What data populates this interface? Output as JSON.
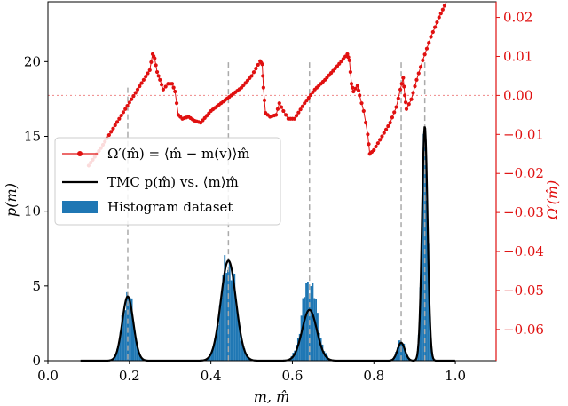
{
  "colors": {
    "histogram": "#1f77b4",
    "tmc_line": "#000000",
    "omega": "#e01010",
    "right_axis": "#e01010",
    "guide": "#aaaaaa",
    "frame": "#000000"
  },
  "chart_data": {
    "type": "bar",
    "title": "",
    "xlabel": "m, m̂",
    "ylabel": "p(m)",
    "y2label": "Ω′(m̂)",
    "xlim": [
      0.0,
      1.1
    ],
    "ylim": [
      0,
      24
    ],
    "y2lim": [
      -0.068,
      0.024
    ],
    "x_ticks": [
      {
        "v": 0.0,
        "label": "0.0"
      },
      {
        "v": 0.2,
        "label": "0.2"
      },
      {
        "v": 0.4,
        "label": "0.4"
      },
      {
        "v": 0.6,
        "label": "0.6"
      },
      {
        "v": 0.8,
        "label": "0.8"
      },
      {
        "v": 1.0,
        "label": "1.0"
      }
    ],
    "y_ticks": [
      {
        "v": 0,
        "label": "0"
      },
      {
        "v": 5,
        "label": "5"
      },
      {
        "v": 10,
        "label": "10"
      },
      {
        "v": 15,
        "label": "15"
      },
      {
        "v": 20,
        "label": "20"
      }
    ],
    "y2_ticks": [
      {
        "v": 0.02,
        "label": "0.02"
      },
      {
        "v": 0.01,
        "label": "0.01"
      },
      {
        "v": 0.0,
        "label": "0.00"
      },
      {
        "v": -0.01,
        "label": "−0.01"
      },
      {
        "v": -0.02,
        "label": "−0.02"
      },
      {
        "v": -0.03,
        "label": "−0.03"
      },
      {
        "v": -0.04,
        "label": "−0.04"
      },
      {
        "v": -0.05,
        "label": "−0.05"
      },
      {
        "v": -0.06,
        "label": "−0.06"
      }
    ],
    "legend_position": "center-left",
    "legend": [
      {
        "kind": "line-marker",
        "label": "Ω′(m̂) = ⟨m̂ − m(v)⟩m̂"
      },
      {
        "kind": "line",
        "label": "TMC p(m̂) vs. ⟨m⟩m̂"
      },
      {
        "kind": "patch",
        "label": "Histogram dataset"
      }
    ],
    "zero_reference_line": 0.0,
    "guide_lines_x": [
      0.196,
      0.443,
      0.642,
      0.867,
      0.925
    ],
    "peaks": [
      {
        "mu": 0.196,
        "sigma": 0.0135,
        "tmc_peak": 4.3,
        "hist_peak": 4.9
      },
      {
        "mu": 0.443,
        "sigma": 0.0185,
        "tmc_peak": 6.7,
        "hist_peak": 7.3
      },
      {
        "mu": 0.642,
        "sigma": 0.018,
        "tmc_peak": 3.4,
        "hist_peak": 5.8
      },
      {
        "mu": 0.867,
        "sigma": 0.009,
        "tmc_peak": 1.2,
        "hist_peak": 1.6
      },
      {
        "mu": 0.925,
        "sigma": 0.0068,
        "tmc_peak": 15.7,
        "hist_peak": 18.0
      }
    ],
    "histogram_bin_width": 0.004,
    "histogram_range": [
      0.08,
      0.97
    ],
    "omega_series": {
      "name": "Ω′(m̂)",
      "segments": [
        [
          [
            0.1,
            -0.018
          ],
          [
            0.13,
            -0.0135
          ],
          [
            0.16,
            -0.0085
          ],
          [
            0.19,
            -0.0035
          ],
          [
            0.22,
            0.0015
          ],
          [
            0.25,
            0.0065
          ],
          [
            0.257,
            0.0106
          ]
        ],
        [
          [
            0.257,
            0.0106
          ],
          [
            0.262,
            0.0095
          ],
          [
            0.268,
            0.006
          ],
          [
            0.275,
            0.004
          ],
          [
            0.283,
            0.0015
          ],
          [
            0.295,
            0.003
          ],
          [
            0.305,
            0.003
          ],
          [
            0.312,
            0.001
          ],
          [
            0.32,
            -0.005
          ],
          [
            0.33,
            -0.006
          ],
          [
            0.345,
            -0.0055
          ],
          [
            0.36,
            -0.0065
          ],
          [
            0.375,
            -0.007
          ]
        ],
        [
          [
            0.375,
            -0.007
          ],
          [
            0.4,
            -0.004
          ],
          [
            0.425,
            -0.002
          ],
          [
            0.45,
            0.0
          ],
          [
            0.475,
            0.002
          ],
          [
            0.5,
            0.005
          ],
          [
            0.521,
            0.0088
          ]
        ],
        [
          [
            0.521,
            0.0088
          ],
          [
            0.526,
            0.008
          ],
          [
            0.529,
            0.002
          ],
          [
            0.534,
            -0.0045
          ],
          [
            0.545,
            -0.0055
          ],
          [
            0.56,
            -0.005
          ],
          [
            0.568,
            -0.002
          ],
          [
            0.578,
            -0.004
          ],
          [
            0.59,
            -0.006
          ],
          [
            0.605,
            -0.006
          ]
        ],
        [
          [
            0.605,
            -0.006
          ],
          [
            0.63,
            -0.002
          ],
          [
            0.655,
            0.0015
          ],
          [
            0.68,
            0.004
          ],
          [
            0.71,
            0.0075
          ],
          [
            0.735,
            0.0106
          ]
        ],
        [
          [
            0.735,
            0.0106
          ],
          [
            0.74,
            0.009
          ],
          [
            0.745,
            0.003
          ],
          [
            0.75,
            0.001
          ],
          [
            0.76,
            0.0025
          ],
          [
            0.765,
            0.0
          ],
          [
            0.775,
            -0.004
          ],
          [
            0.785,
            -0.01
          ],
          [
            0.79,
            -0.015
          ],
          [
            0.8,
            -0.014
          ]
        ],
        [
          [
            0.8,
            -0.014
          ],
          [
            0.82,
            -0.0105
          ],
          [
            0.84,
            -0.007
          ],
          [
            0.855,
            -0.003
          ],
          [
            0.865,
            0.0015
          ],
          [
            0.872,
            0.0045
          ]
        ],
        [
          [
            0.872,
            0.0045
          ],
          [
            0.876,
            0.0
          ],
          [
            0.88,
            -0.0035
          ],
          [
            0.892,
            -0.001
          ],
          [
            0.905,
            0.004
          ],
          [
            0.92,
            0.009
          ],
          [
            0.94,
            0.015
          ],
          [
            0.96,
            0.02
          ],
          [
            0.978,
            0.024
          ]
        ]
      ]
    }
  }
}
